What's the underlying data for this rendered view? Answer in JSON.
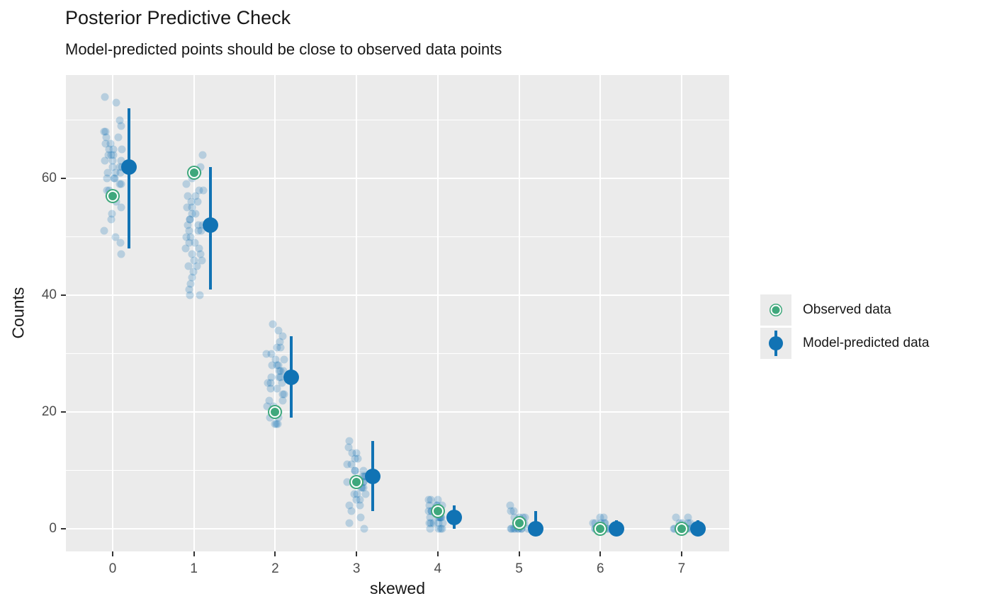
{
  "title": "Posterior Predictive Check",
  "subtitle": "Model-predicted points should be close to observed data points",
  "axes": {
    "x_label": "skewed",
    "y_label": "Counts",
    "x_tick_labels": [
      "0",
      "1",
      "2",
      "3",
      "4",
      "5",
      "6",
      "7"
    ],
    "y_tick_labels": [
      "0",
      "20",
      "40",
      "60"
    ]
  },
  "legend": {
    "items": [
      {
        "label": "Observed data",
        "marker": "point-icon"
      },
      {
        "label": "Model-predicted data",
        "marker": "pointrange-icon"
      }
    ]
  },
  "colors": {
    "observed_green": "#3fa87c",
    "predicted_blue": "#1173b4",
    "draw_blue": "rgba(18,114,178,0.24)",
    "panel_bg": "#ebebeb",
    "grid_white": "#ffffff",
    "tick_text": "#4d4d4d",
    "text": "#171717"
  },
  "chart_data": {
    "type": "scatter",
    "title": "Posterior Predictive Check",
    "subtitle": "Model-predicted points should be close to observed data points",
    "xlabel": "skewed",
    "ylabel": "Counts",
    "x": [
      0,
      1,
      2,
      3,
      4,
      5,
      6,
      7
    ],
    "x_tick_labels": [
      "0",
      "1",
      "2",
      "3",
      "4",
      "5",
      "6",
      "7"
    ],
    "ylim": [
      -4,
      78
    ],
    "y_major_ticks": [
      0,
      20,
      40,
      60
    ],
    "y_minor_ticks": [
      10,
      30,
      50,
      70
    ],
    "grid": true,
    "legend_position": "right",
    "series": [
      {
        "name": "Observed data",
        "type": "point",
        "values": [
          57,
          61,
          20,
          8,
          3,
          1,
          0,
          0
        ]
      },
      {
        "name": "Model-predicted data",
        "type": "pointrange",
        "means": [
          62,
          52,
          26,
          9,
          2,
          0,
          0,
          0
        ],
        "interval_low": [
          48,
          41,
          19,
          3,
          0,
          0,
          0,
          0
        ],
        "interval_high": [
          72,
          62,
          33,
          15,
          4,
          3,
          1.4,
          1.4
        ]
      },
      {
        "name": "Posterior predictive draws",
        "type": "jittered-points",
        "points_per_x": [
          [
            74,
            73,
            70,
            69,
            68,
            68,
            67,
            67,
            66,
            66,
            65,
            65,
            65,
            64,
            64,
            64,
            63,
            63,
            63,
            62,
            62,
            62,
            61,
            61,
            61,
            60,
            60,
            60,
            59,
            59,
            58,
            58,
            57,
            57,
            56,
            55,
            54,
            53,
            51,
            50,
            49,
            47
          ],
          [
            64,
            62,
            61,
            60,
            59,
            58,
            58,
            57,
            57,
            56,
            56,
            55,
            55,
            54,
            54,
            53,
            53,
            52,
            52,
            52,
            51,
            51,
            51,
            50,
            50,
            49,
            49,
            48,
            48,
            47,
            47,
            46,
            46,
            45,
            45,
            44,
            43,
            42,
            41,
            40,
            40
          ],
          [
            35,
            34,
            33,
            32,
            31,
            31,
            30,
            30,
            29,
            29,
            28,
            28,
            28,
            27,
            27,
            27,
            26,
            26,
            26,
            25,
            25,
            25,
            24,
            24,
            23,
            23,
            22,
            22,
            21,
            21,
            20,
            20,
            19,
            19,
            18,
            18,
            18
          ],
          [
            15,
            14,
            13,
            13,
            12,
            12,
            11,
            11,
            10,
            10,
            10,
            9,
            9,
            9,
            8,
            8,
            8,
            8,
            7,
            7,
            7,
            6,
            6,
            6,
            5,
            5,
            4,
            4,
            3,
            2,
            1,
            0
          ],
          [
            5,
            5,
            5,
            4,
            4,
            4,
            4,
            3,
            3,
            3,
            3,
            3,
            3,
            2,
            2,
            2,
            2,
            2,
            2,
            1,
            1,
            1,
            1,
            1,
            0,
            0,
            0,
            0
          ],
          [
            4,
            3,
            3,
            2,
            2,
            2,
            2,
            1,
            1,
            1,
            1,
            1,
            1,
            0,
            0,
            0,
            0,
            0,
            0,
            0,
            0,
            0
          ],
          [
            2,
            2,
            1,
            1,
            1,
            1,
            1,
            0,
            0,
            0,
            0,
            0,
            0,
            0,
            0,
            0,
            0,
            0
          ],
          [
            2,
            2,
            1,
            1,
            1,
            1,
            0,
            0,
            0,
            0,
            0,
            0,
            0,
            0,
            0,
            0
          ]
        ]
      }
    ]
  }
}
